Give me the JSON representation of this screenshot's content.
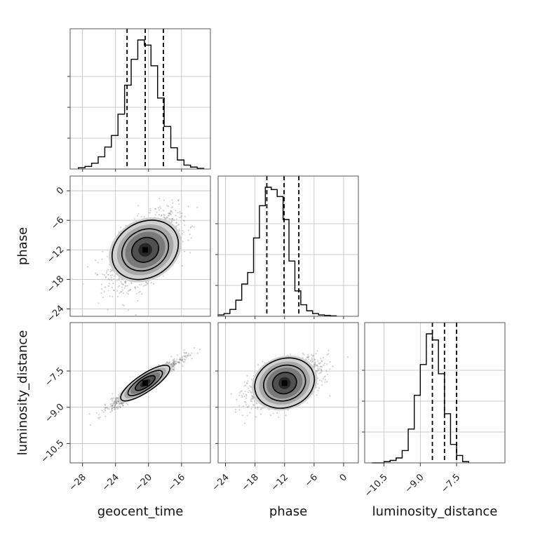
{
  "chart_data": {
    "type": "corner",
    "parameters": [
      "geocent_time",
      "phase",
      "luminosity_distance"
    ],
    "ranges": {
      "geocent_time": [
        -29.5,
        -12.5
      ],
      "phase": [
        -25.5,
        3.0
      ],
      "luminosity_distance": [
        -11.3,
        -5.5
      ]
    },
    "ticks": {
      "geocent_time": [
        -28,
        -24,
        -20,
        -16
      ],
      "phase": [
        -24,
        -18,
        -12,
        -6,
        0
      ],
      "luminosity_distance": [
        -10.5,
        -9.0,
        -7.5
      ]
    },
    "tick_labels": {
      "geocent_time": [
        "−28",
        "−24",
        "−20",
        "−16"
      ],
      "phase": [
        "−24",
        "−18",
        "−12",
        "−6",
        "0"
      ],
      "luminosity_distance": [
        "−10.5",
        "−9.0",
        "−7.5"
      ]
    },
    "axis_labels": {
      "geocent_time": "geocent_time",
      "phase": "phase",
      "luminosity_distance": "luminosity_distance"
    },
    "quantiles": {
      "geocent_time": [
        -22.6,
        -20.4,
        -18.2
      ],
      "phase": [
        -15.6,
        -12.1,
        -9.1
      ],
      "luminosity_distance": [
        -8.5,
        -8.0,
        -7.5
      ]
    },
    "means": {
      "geocent_time": -20.4,
      "phase": -12.0,
      "luminosity_distance": -8.0
    },
    "histograms": {
      "geocent_time": {
        "edges_start": -28.5,
        "bin_width": 0.8,
        "counts": [
          2,
          4,
          9,
          19,
          34,
          52,
          85,
          130,
          170,
          200,
          192,
          160,
          110,
          66,
          33,
          14,
          6,
          3,
          1
        ]
      },
      "phase": {
        "edges_start": -25.5,
        "bin_width": 1.2,
        "counts": [
          3,
          6,
          15,
          35,
          70,
          95,
          170,
          240,
          280,
          275,
          260,
          210,
          120,
          55,
          25,
          12,
          6,
          3,
          2,
          1
        ]
      },
      "luminosity_distance": {
        "edges_start": -11.0,
        "bin_width": 0.25,
        "counts": [
          0,
          0,
          2,
          4,
          8,
          20,
          55,
          110,
          160,
          210,
          200,
          145,
          80,
          30,
          12,
          2
        ]
      }
    },
    "grid": true,
    "density_color": "#000000",
    "scatter_color": "#7f7f7f"
  }
}
